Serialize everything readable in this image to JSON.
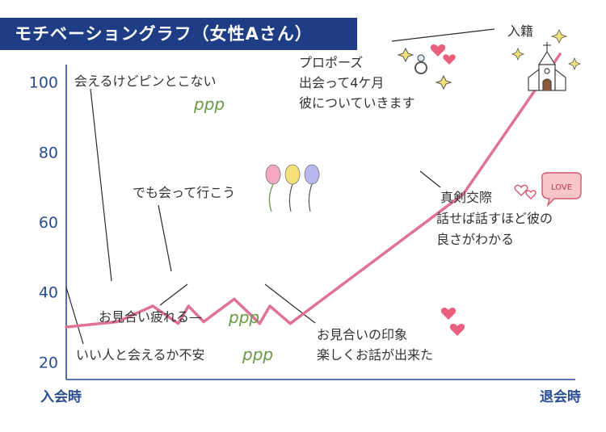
{
  "title": "モチベーショングラフ（女性Aさん）",
  "colors": {
    "title_bg": "#1f3d85",
    "axis": "#2a4d8f",
    "line": "#e0719a",
    "heart": "#e8607e",
    "balloon_pink": "#f6a7c1",
    "balloon_yellow": "#f3e27a",
    "balloon_blue": "#b9b7f2",
    "sparkle": "#e8c65a"
  },
  "chart_data": {
    "type": "line",
    "x_start_label": "入会時",
    "x_end_label": "退会時",
    "ylim": [
      15,
      105
    ],
    "yticks": [
      20,
      40,
      60,
      80,
      100
    ],
    "grid": false,
    "x": [
      0,
      10,
      17,
      22,
      24,
      27,
      33,
      38,
      40,
      44,
      78,
      97
    ],
    "values": [
      30,
      31.5,
      36,
      31,
      36,
      31.5,
      38,
      31,
      36,
      31,
      68,
      108
    ]
  },
  "annotations": {
    "peak1": "会えるけどピンとこない",
    "peak1_deco": "ppp",
    "cheer": "でも会って行こう",
    "tired": "お見合い疲れる—",
    "tired_deco": "ppp",
    "anxious": "いい人と会えるか不安",
    "anxious_deco": "ppp",
    "impression_line1": "お見合いの印象",
    "impression_line2": "楽しくお話が出来た",
    "dating_line1": "真剣交際",
    "dating_line2": "話せば話すほど彼の",
    "dating_line3": "良さがわかる",
    "love_badge": "LOVE",
    "proposal_line1": "プロポーズ",
    "proposal_line2": "出会って4ケ月",
    "proposal_line3": "彼についていきます",
    "marriage": "入籍"
  },
  "icons": [
    "heart-icon",
    "balloon-icon",
    "sparkle-icon",
    "ring-icon",
    "church-icon",
    "love-speech-bubble-icon"
  ]
}
